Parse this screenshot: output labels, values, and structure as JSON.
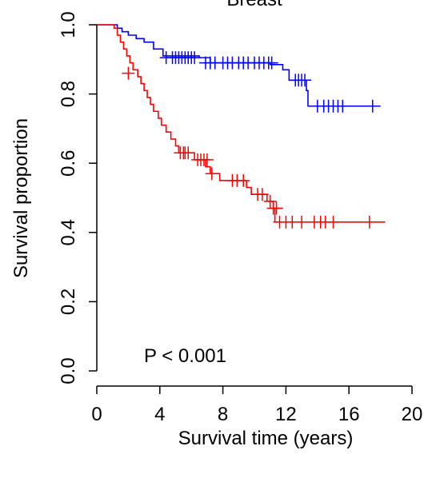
{
  "chart_data": {
    "type": "line",
    "title": "Breast",
    "xlabel": "Survival time (years)",
    "ylabel": "Survival proportion",
    "xlim": [
      0,
      20
    ],
    "ylim": [
      0,
      1
    ],
    "x_ticks": [
      "0",
      "4",
      "8",
      "12",
      "16",
      "20"
    ],
    "y_ticks": [
      "0.0",
      "0.2",
      "0.4",
      "0.6",
      "0.8",
      "1.0"
    ],
    "annotation": "P < 0.001",
    "grid": false,
    "step": true,
    "series": [
      {
        "color": "#0000ff",
        "steps": [
          [
            0,
            1.0
          ],
          [
            1.3,
            0.99
          ],
          [
            1.6,
            0.98
          ],
          [
            2.0,
            0.97
          ],
          [
            2.5,
            0.96
          ],
          [
            3.0,
            0.95
          ],
          [
            3.6,
            0.93
          ],
          [
            4.2,
            0.91
          ],
          [
            6.5,
            0.905
          ],
          [
            7.2,
            0.89
          ],
          [
            11.0,
            0.885
          ],
          [
            11.8,
            0.87
          ],
          [
            12.2,
            0.84
          ],
          [
            13.3,
            0.81
          ],
          [
            13.4,
            0.765
          ],
          [
            18.0,
            0.765
          ]
        ],
        "censored": [
          [
            4.4,
            0.905
          ],
          [
            4.8,
            0.905
          ],
          [
            5.0,
            0.905
          ],
          [
            5.2,
            0.905
          ],
          [
            5.4,
            0.905
          ],
          [
            5.6,
            0.905
          ],
          [
            5.8,
            0.905
          ],
          [
            6.0,
            0.905
          ],
          [
            6.2,
            0.905
          ],
          [
            6.9,
            0.89
          ],
          [
            7.2,
            0.89
          ],
          [
            7.5,
            0.89
          ],
          [
            8.0,
            0.89
          ],
          [
            8.3,
            0.89
          ],
          [
            8.6,
            0.89
          ],
          [
            9.0,
            0.89
          ],
          [
            9.3,
            0.89
          ],
          [
            9.6,
            0.89
          ],
          [
            10.0,
            0.89
          ],
          [
            10.3,
            0.89
          ],
          [
            10.6,
            0.89
          ],
          [
            10.9,
            0.89
          ],
          [
            11.1,
            0.89
          ],
          [
            12.6,
            0.84
          ],
          [
            12.8,
            0.84
          ],
          [
            13.0,
            0.84
          ],
          [
            13.2,
            0.84
          ],
          [
            14.0,
            0.765
          ],
          [
            14.4,
            0.765
          ],
          [
            14.7,
            0.765
          ],
          [
            15.0,
            0.765
          ],
          [
            15.3,
            0.765
          ],
          [
            15.6,
            0.765
          ],
          [
            17.5,
            0.765
          ]
        ]
      },
      {
        "color": "#ff0000",
        "steps": [
          [
            0,
            1.0
          ],
          [
            1.1,
            0.99
          ],
          [
            1.3,
            0.97
          ],
          [
            1.5,
            0.95
          ],
          [
            1.7,
            0.93
          ],
          [
            1.9,
            0.91
          ],
          [
            2.1,
            0.89
          ],
          [
            2.3,
            0.87
          ],
          [
            2.6,
            0.85
          ],
          [
            2.8,
            0.83
          ],
          [
            3.0,
            0.81
          ],
          [
            3.2,
            0.79
          ],
          [
            3.4,
            0.77
          ],
          [
            3.6,
            0.75
          ],
          [
            3.9,
            0.73
          ],
          [
            4.1,
            0.71
          ],
          [
            4.4,
            0.69
          ],
          [
            4.7,
            0.67
          ],
          [
            5.0,
            0.65
          ],
          [
            5.2,
            0.63
          ],
          [
            6.2,
            0.61
          ],
          [
            6.9,
            0.59
          ],
          [
            7.2,
            0.57
          ],
          [
            7.8,
            0.55
          ],
          [
            9.5,
            0.53
          ],
          [
            9.8,
            0.51
          ],
          [
            10.8,
            0.49
          ],
          [
            11.2,
            0.47
          ],
          [
            11.3,
            0.43
          ],
          [
            18.3,
            0.43
          ]
        ],
        "censored": [
          [
            2.0,
            0.86
          ],
          [
            5.3,
            0.63
          ],
          [
            5.5,
            0.63
          ],
          [
            5.6,
            0.63
          ],
          [
            5.8,
            0.63
          ],
          [
            6.4,
            0.61
          ],
          [
            6.6,
            0.61
          ],
          [
            6.8,
            0.61
          ],
          [
            7.0,
            0.61
          ],
          [
            7.3,
            0.57
          ],
          [
            8.6,
            0.55
          ],
          [
            8.9,
            0.55
          ],
          [
            9.3,
            0.55
          ],
          [
            10.2,
            0.51
          ],
          [
            10.5,
            0.51
          ],
          [
            11.0,
            0.49
          ],
          [
            11.2,
            0.47
          ],
          [
            11.4,
            0.47
          ],
          [
            11.6,
            0.43
          ],
          [
            12.0,
            0.43
          ],
          [
            12.4,
            0.43
          ],
          [
            13.0,
            0.43
          ],
          [
            13.8,
            0.43
          ],
          [
            14.2,
            0.43
          ],
          [
            14.5,
            0.43
          ],
          [
            15.0,
            0.43
          ],
          [
            17.3,
            0.43
          ]
        ]
      }
    ]
  }
}
